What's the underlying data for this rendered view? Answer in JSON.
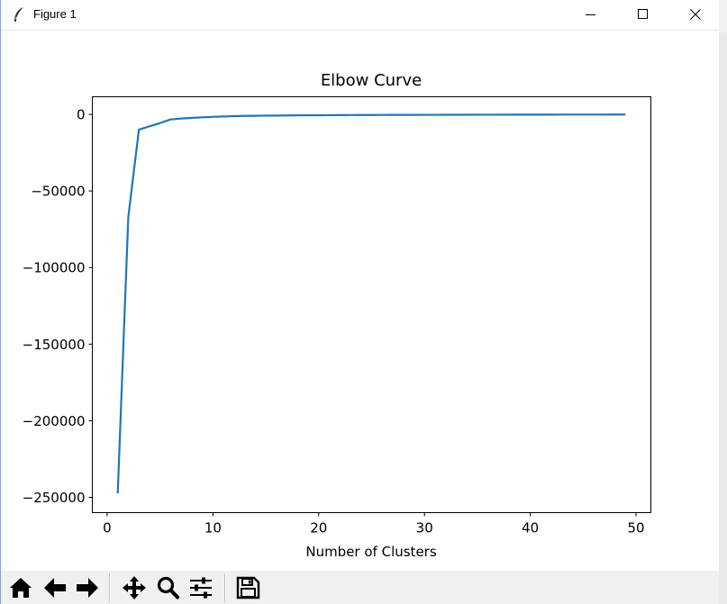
{
  "window": {
    "title": "Figure 1",
    "icons": {
      "app": "feather-icon",
      "minimize": "minimize-icon",
      "maximize": "maximize-icon",
      "close": "close-icon"
    }
  },
  "toolbar": {
    "buttons": [
      {
        "name": "home-button",
        "icon": "home-icon"
      },
      {
        "name": "back-button",
        "icon": "arrow-left-icon"
      },
      {
        "name": "forward-button",
        "icon": "arrow-right-icon"
      },
      {
        "name": "pan-button",
        "icon": "move-icon"
      },
      {
        "name": "zoom-button",
        "icon": "magnifier-icon"
      },
      {
        "name": "configure-subplots-button",
        "icon": "sliders-icon"
      },
      {
        "name": "save-button",
        "icon": "floppy-disk-icon"
      }
    ]
  },
  "chart_data": {
    "type": "line",
    "title": "Elbow Curve",
    "xlabel": "Number of Clusters",
    "ylabel": "",
    "xlim": [
      -1.4,
      51.4
    ],
    "ylim": [
      -260000,
      11500
    ],
    "xticks": [
      0,
      10,
      20,
      30,
      40,
      50
    ],
    "yticks": [
      0,
      -50000,
      -100000,
      -150000,
      -200000,
      -250000
    ],
    "xtick_labels": [
      "0",
      "10",
      "20",
      "30",
      "40",
      "50"
    ],
    "ytick_labels": [
      "0",
      "−50000",
      "−100000",
      "−150000",
      "−200000",
      "−250000"
    ],
    "grid": false,
    "legend": "none",
    "color": "#1f77b4",
    "series": [
      {
        "x": [
          1,
          2,
          3,
          4,
          5,
          6,
          7,
          8,
          9,
          10,
          11,
          12,
          13,
          14,
          15,
          16,
          17,
          18,
          19,
          20,
          21,
          22,
          23,
          24,
          25,
          26,
          27,
          28,
          29,
          30,
          31,
          32,
          33,
          34,
          35,
          36,
          37,
          38,
          39,
          40,
          41,
          42,
          43,
          44,
          45,
          46,
          47,
          48,
          49
        ],
        "values": [
          -247500,
          -67000,
          -10000,
          -7800,
          -5700,
          -3300,
          -2700,
          -2300,
          -1900,
          -1600,
          -1350,
          -1150,
          -1000,
          -900,
          -820,
          -750,
          -690,
          -640,
          -590,
          -550,
          -510,
          -480,
          -450,
          -420,
          -395,
          -370,
          -350,
          -330,
          -310,
          -295,
          -280,
          -265,
          -250,
          -238,
          -226,
          -215,
          -205,
          -195,
          -186,
          -178,
          -170,
          -162,
          -155,
          -148,
          -142,
          -136,
          -130,
          -124,
          -119
        ]
      }
    ]
  }
}
